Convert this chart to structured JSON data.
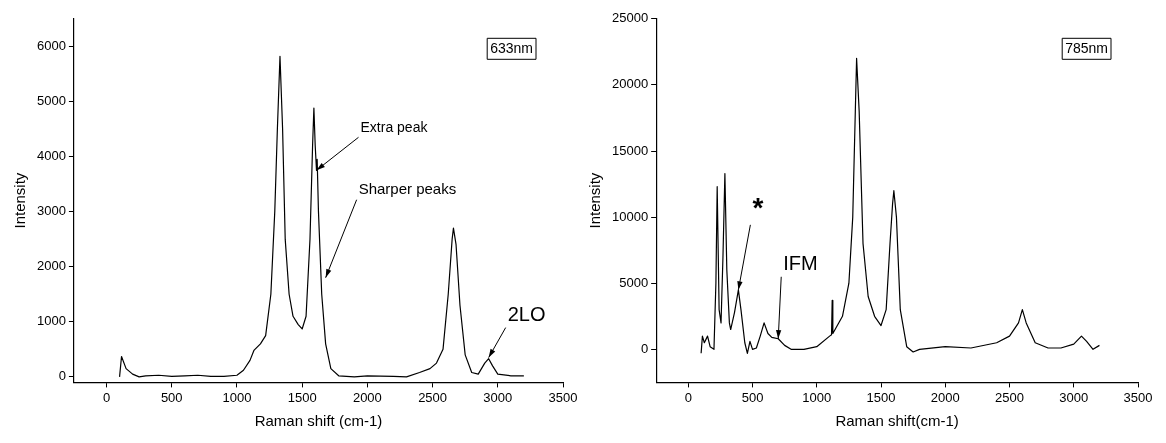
{
  "chart_data": [
    {
      "type": "line",
      "xlabel": "Raman shift (cm-1)",
      "ylabel": "Intensity",
      "xlim": [
        -250,
        3500
      ],
      "ylim": [
        -100,
        6500
      ],
      "xticks": [
        0,
        500,
        1000,
        1500,
        2000,
        2500,
        3000,
        3500
      ],
      "yticks": [
        0,
        1000,
        2000,
        3000,
        4000,
        5000,
        6000
      ],
      "grid": false,
      "legend": false,
      "marker": "none",
      "annotations": [
        "633nm",
        {
          "text": "Extra peak",
          "x": 1610,
          "y": 3750
        },
        {
          "text": "Sharper peaks",
          "x": 1680,
          "y": 1800
        },
        {
          "text": "2LO",
          "x": 2930,
          "y": 350
        }
      ],
      "series": [
        {
          "color": "#000000",
          "x": [
            100,
            115,
            150,
            200,
            250,
            300,
            400,
            500,
            600,
            700,
            800,
            900,
            1000,
            1050,
            1100,
            1130,
            1180,
            1220,
            1260,
            1290,
            1310,
            1330,
            1350,
            1370,
            1400,
            1430,
            1470,
            1500,
            1530,
            1560,
            1580,
            1590,
            1600,
            1610,
            1615,
            1625,
            1650,
            1680,
            1720,
            1780,
            1900,
            2000,
            2200,
            2300,
            2400,
            2480,
            2530,
            2580,
            2620,
            2650,
            2660,
            2680,
            2710,
            2750,
            2800,
            2850,
            2900,
            2930,
            2960,
            3000,
            3100,
            3200
          ],
          "values": [
            0,
            370,
            150,
            50,
            0,
            20,
            30,
            10,
            20,
            30,
            10,
            10,
            30,
            120,
            300,
            480,
            600,
            750,
            1500,
            3000,
            4500,
            5820,
            4500,
            2500,
            1500,
            1100,
            950,
            870,
            1100,
            2500,
            4200,
            4880,
            4200,
            3750,
            3950,
            3000,
            1500,
            600,
            150,
            20,
            0,
            20,
            10,
            0,
            80,
            150,
            250,
            500,
            1500,
            2500,
            2700,
            2400,
            1300,
            400,
            80,
            50,
            250,
            330,
            200,
            50,
            20,
            20
          ]
        }
      ]
    },
    {
      "type": "line",
      "xlabel": "Raman shift(cm-1)",
      "ylabel": "Intensity",
      "xlim": [
        -250,
        3500
      ],
      "ylim": [
        -2500,
        25000
      ],
      "xticks": [
        0,
        500,
        1000,
        1500,
        2000,
        2500,
        3000,
        3500
      ],
      "yticks": [
        0,
        5000,
        10000,
        15000,
        20000,
        25000
      ],
      "grid": false,
      "legend": false,
      "marker": "none",
      "annotations": [
        "785nm",
        {
          "text": "*",
          "x": 390,
          "y": 4500
        },
        {
          "text": "IFM",
          "x": 700,
          "y": 800
        }
      ],
      "series": [
        {
          "color": "#000000",
          "x": [
            100,
            110,
            125,
            150,
            170,
            200,
            215,
            225,
            240,
            255,
            270,
            285,
            300,
            320,
            330,
            360,
            390,
            410,
            440,
            460,
            480,
            500,
            530,
            560,
            590,
            620,
            650,
            700,
            750,
            800,
            900,
            1000,
            1100,
            1115,
            1120,
            1125,
            1200,
            1250,
            1280,
            1300,
            1310,
            1330,
            1360,
            1400,
            1450,
            1500,
            1540,
            1570,
            1590,
            1600,
            1620,
            1650,
            1700,
            1750,
            1800,
            2000,
            2200,
            2400,
            2500,
            2570,
            2600,
            2630,
            2700,
            2800,
            2900,
            3000,
            3060,
            3100,
            3150,
            3200
          ],
          "values": [
            -300,
            1000,
            500,
            1000,
            200,
            0,
            5000,
            12300,
            3000,
            2000,
            7000,
            13300,
            6000,
            2000,
            1500,
            2800,
            4500,
            3000,
            500,
            -300,
            600,
            0,
            100,
            1000,
            2000,
            1200,
            900,
            800,
            300,
            0,
            0,
            200,
            1000,
            1100,
            3700,
            1200,
            2500,
            5000,
            10000,
            18000,
            22000,
            18000,
            8000,
            4000,
            2500,
            1800,
            3000,
            8000,
            11000,
            12000,
            10000,
            3000,
            200,
            -200,
            0,
            200,
            100,
            500,
            1000,
            2000,
            3000,
            2000,
            500,
            100,
            100,
            400,
            1000,
            600,
            0,
            300
          ]
        }
      ]
    }
  ]
}
